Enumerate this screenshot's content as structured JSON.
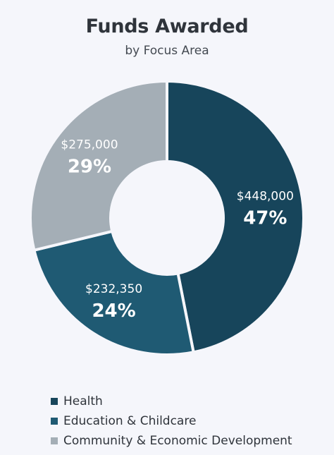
{
  "chart_data": {
    "type": "pie",
    "title": "Funds Awarded",
    "subtitle": "by Focus Area",
    "legend_position": "bottom",
    "categories": [
      "Health",
      "Education & Childcare",
      "Community & Economic Development"
    ],
    "values": [
      448000,
      232350,
      275000
    ],
    "value_labels": [
      "$448,000",
      "$232,350",
      "$275,000"
    ],
    "percent_labels": [
      "47%",
      "24%",
      "29%"
    ],
    "colors": [
      "#17455b",
      "#1f5a73",
      "#a4aeb6"
    ]
  }
}
